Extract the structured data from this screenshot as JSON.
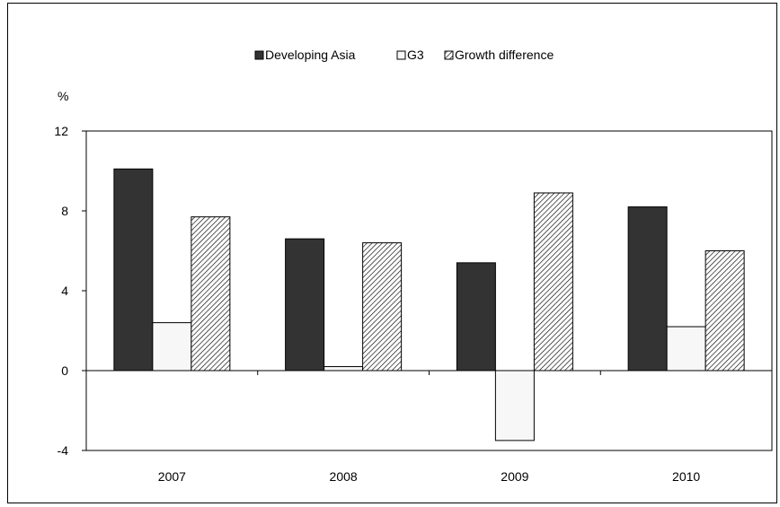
{
  "chart_data": {
    "type": "bar",
    "title": "",
    "ylabel": "%",
    "xlabel": "",
    "categories": [
      "2007",
      "2008",
      "2009",
      "2010"
    ],
    "series": [
      {
        "name": "Developing Asia",
        "values": [
          10.1,
          6.6,
          5.4,
          8.2
        ],
        "color": "#333333",
        "pattern": "solid"
      },
      {
        "name": "G3",
        "values": [
          2.4,
          0.2,
          -3.5,
          2.2
        ],
        "color": "#f7f7f7",
        "pattern": "solid"
      },
      {
        "name": "Growth difference",
        "values": [
          7.7,
          6.4,
          8.9,
          6.0
        ],
        "color": "#ffffff",
        "pattern": "hatch"
      }
    ],
    "ylim": [
      -4,
      12
    ],
    "yticks": [
      -4,
      0,
      4,
      8,
      12
    ],
    "legend_position": "top",
    "grid": false
  }
}
